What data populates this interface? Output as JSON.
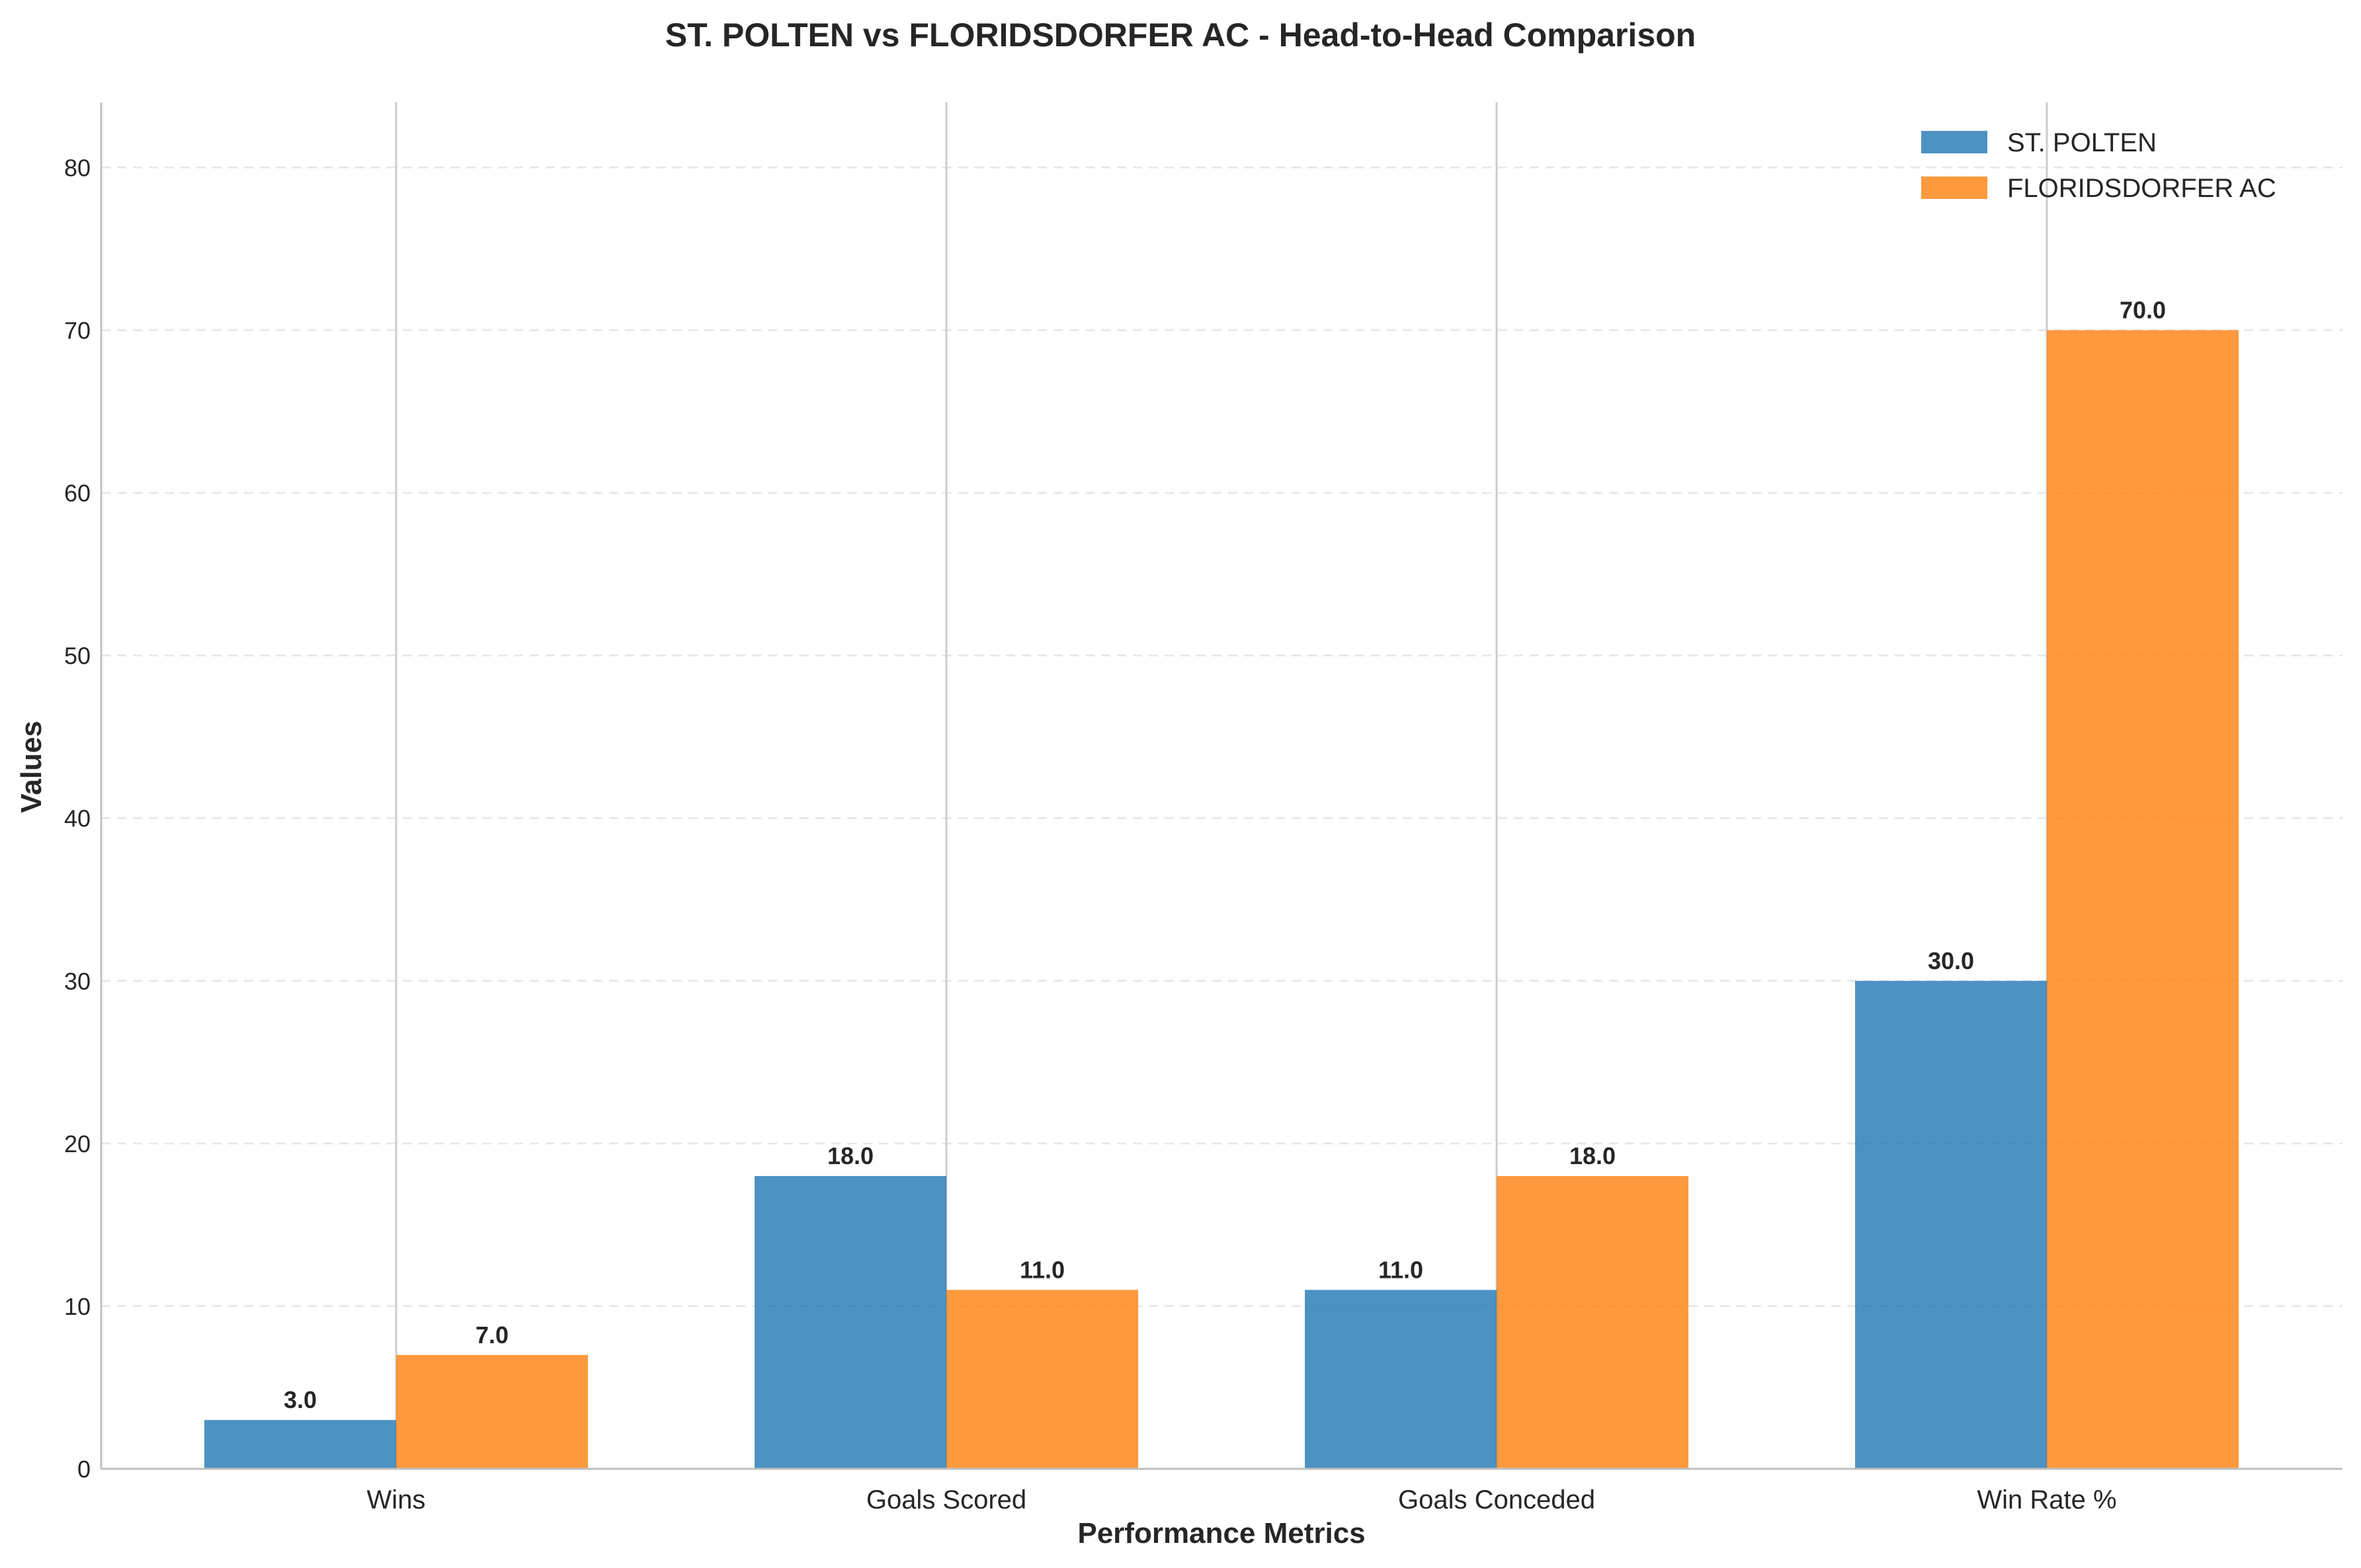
{
  "chart_data": {
    "type": "bar",
    "title": "ST. POLTEN vs FLORIDSDORFER AC - Head-to-Head Comparison",
    "xlabel": "Performance Metrics",
    "ylabel": "Values",
    "categories": [
      "Wins",
      "Goals Scored",
      "Goals Conceded",
      "Win Rate %"
    ],
    "series": [
      {
        "name": "ST. POLTEN",
        "values": [
          3.0,
          18.0,
          11.0,
          30.0
        ],
        "color": "#1f77b4",
        "value_labels": [
          "3.0",
          "18.0",
          "11.0",
          "30.0"
        ]
      },
      {
        "name": "FLORIDSDORFER AC",
        "values": [
          7.0,
          11.0,
          18.0,
          70.0
        ],
        "color": "#ff7f0e",
        "value_labels": [
          "7.0",
          "11.0",
          "18.0",
          "70.0"
        ]
      }
    ],
    "ylim": [
      0,
      84
    ],
    "yticks": [
      0,
      10,
      20,
      30,
      40,
      50,
      60,
      70,
      80
    ],
    "ytick_labels": [
      "0",
      "10",
      "20",
      "30",
      "40",
      "50",
      "60",
      "70",
      "80"
    ],
    "grid": "y-dashed",
    "legend": "top-right"
  }
}
